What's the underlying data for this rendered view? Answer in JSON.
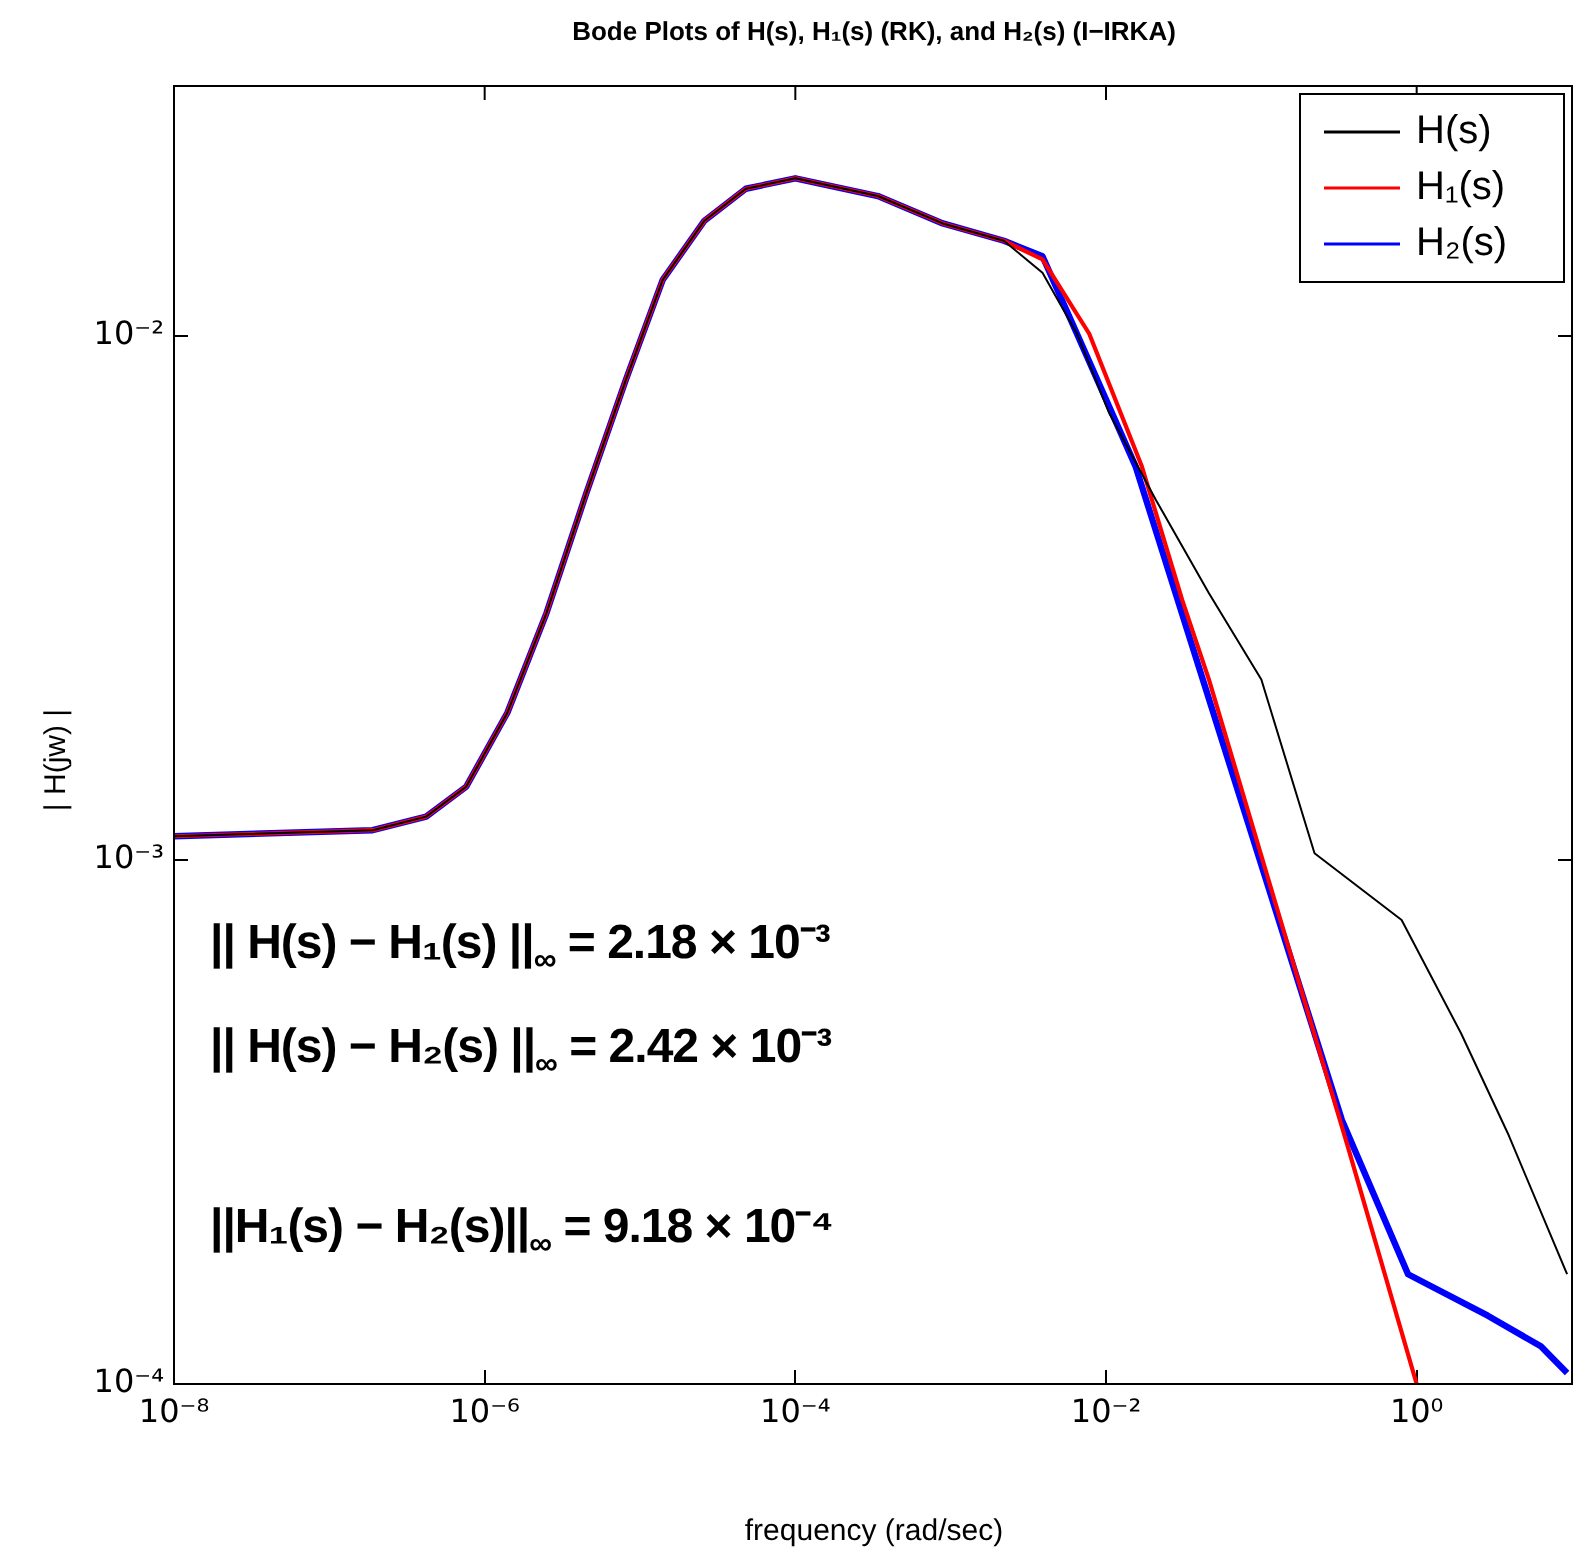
{
  "chart_data": {
    "type": "line",
    "title": "Bode Plots of H(s),   H₁(s) (RK), and   H₂(s) (I−IRKA)",
    "xlabel": "frequency (rad/sec)",
    "ylabel": "| H(jw) |",
    "log": "xy",
    "grid": false,
    "legend": "top right",
    "marker": "none",
    "xlim": [
      1e-08,
      10
    ],
    "ylim": [
      0.0001,
      0.03
    ],
    "xticks": [
      {
        "value": 1e-08,
        "label": "10⁻⁸"
      },
      {
        "value": 1e-06,
        "label": "10⁻⁶"
      },
      {
        "value": 0.0001,
        "label": "10⁻⁴"
      },
      {
        "value": 0.01,
        "label": "10⁻²"
      },
      {
        "value": 1,
        "label": "10⁰"
      }
    ],
    "yticks": [
      {
        "value": 0.0001,
        "label": "10⁻⁴"
      },
      {
        "value": 0.001,
        "label": "10⁻³"
      },
      {
        "value": 0.01,
        "label": "10⁻²"
      }
    ],
    "series": [
      {
        "name": "H(s)",
        "color": "#000000",
        "x": [
          1e-08,
          1.9e-07,
          4.2e-07,
          7.6e-07,
          1.4e-06,
          2.5e-06,
          4.5e-06,
          8.1e-06,
          1.4e-05,
          2.6e-05,
          4.8e-05,
          0.0001,
          0.00034,
          0.00089,
          0.0022,
          0.0039,
          0.0065,
          0.0105,
          0.021,
          0.046,
          0.1,
          0.22,
          0.8,
          1.93,
          3.86,
          9.3
        ],
        "values": [
          0.00111,
          0.00114,
          0.00121,
          0.00138,
          0.00191,
          0.00296,
          0.005,
          0.00824,
          0.0128,
          0.0166,
          0.0191,
          0.02,
          0.0185,
          0.0164,
          0.0152,
          0.0132,
          0.0101,
          0.00712,
          0.00486,
          0.00323,
          0.00221,
          0.00103,
          0.000768,
          0.000467,
          0.000301,
          0.000162
        ]
      },
      {
        "name": "H₁(s)",
        "color": "#ff0000",
        "x": [
          1e-08,
          1.9e-07,
          4.2e-07,
          7.6e-07,
          1.4e-06,
          2.5e-06,
          4.5e-06,
          8.1e-06,
          1.4e-05,
          2.6e-05,
          4.8e-05,
          0.0001,
          0.00034,
          0.00089,
          0.0022,
          0.0039,
          0.0078,
          0.017,
          0.031,
          0.046,
          0.36,
          1.0
        ],
        "values": [
          0.00111,
          0.00114,
          0.00121,
          0.00138,
          0.00191,
          0.00296,
          0.005,
          0.00824,
          0.0128,
          0.0166,
          0.0191,
          0.02,
          0.0185,
          0.0164,
          0.0152,
          0.014,
          0.0101,
          0.00564,
          0.00313,
          0.00221,
          0.000284,
          0.0001
        ]
      },
      {
        "name": "H₂(s)",
        "color": "#0000ff",
        "x": [
          1e-08,
          1.9e-07,
          4.2e-07,
          7.6e-07,
          1.4e-06,
          2.5e-06,
          4.5e-06,
          8.1e-06,
          1.4e-05,
          2.6e-05,
          4.8e-05,
          0.0001,
          0.00034,
          0.00089,
          0.0022,
          0.0039,
          0.0065,
          0.0155,
          0.029,
          0.042,
          0.33,
          0.88,
          2.87,
          6.3,
          9.3
        ],
        "values": [
          0.00111,
          0.00114,
          0.00121,
          0.00138,
          0.00191,
          0.00296,
          0.005,
          0.00824,
          0.0128,
          0.0166,
          0.0191,
          0.02,
          0.0185,
          0.0164,
          0.0152,
          0.0142,
          0.0101,
          0.00564,
          0.00313,
          0.00221,
          0.000319,
          0.000162,
          0.000135,
          0.000118,
          0.000105
        ]
      }
    ],
    "annotations": [
      "|| H(s) − H₁(s) ||$_{∞}$ = 2.18 × 10⁻³",
      "|| H(s) − H₂(s) ||$_{∞}$ = 2.42 × 10⁻³",
      "||H₁(s) − H₂(s)||$_{∞}$ = 9.18 × 10⁻⁴"
    ]
  }
}
